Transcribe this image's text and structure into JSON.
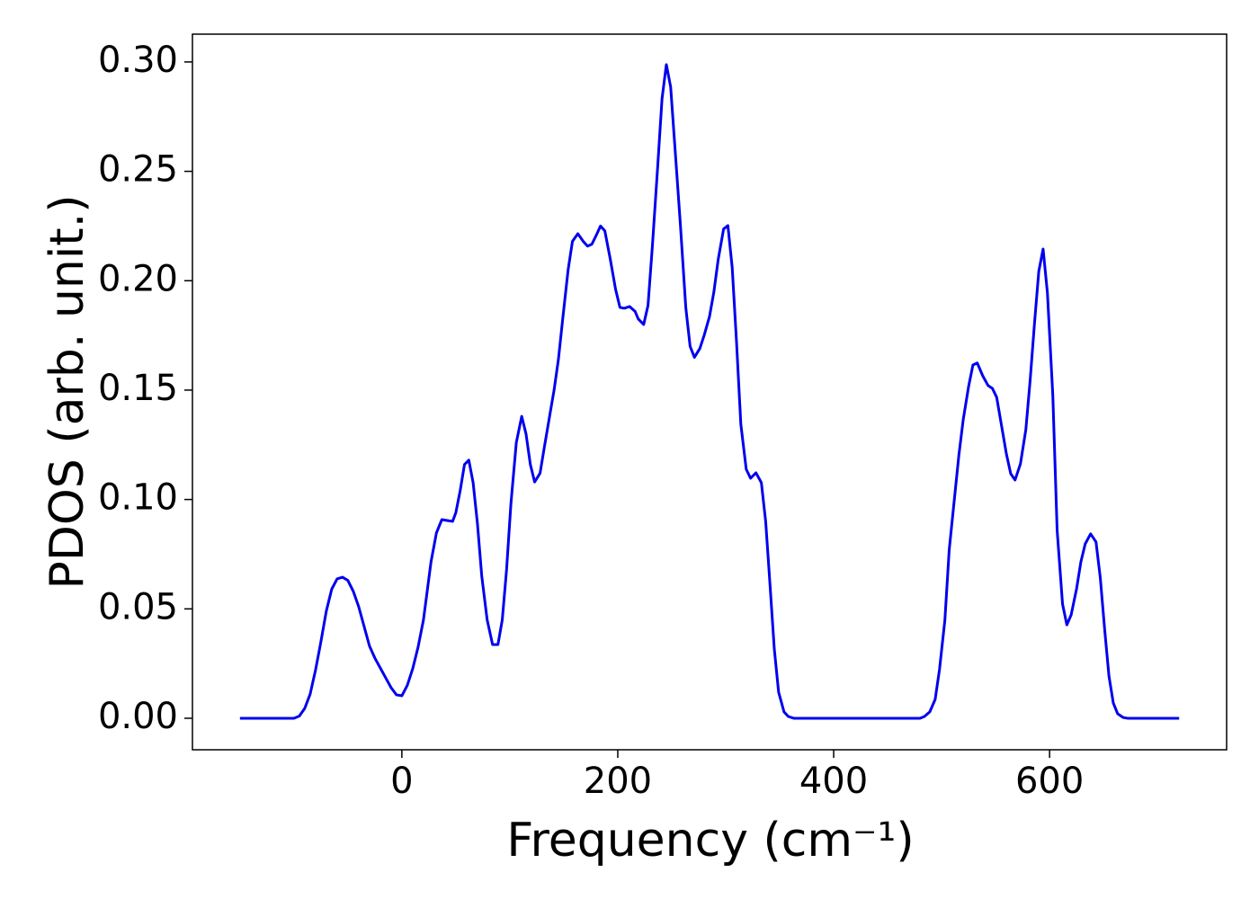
{
  "chart_data": {
    "type": "line",
    "xlabel": "Frequency (cm⁻¹)",
    "ylabel": "PDOS (arb. unit.)",
    "xlim": [
      -194,
      764
    ],
    "ylim": [
      -0.0144,
      0.3127
    ],
    "xticks": [
      0,
      200,
      400,
      600
    ],
    "yticks": [
      {
        "value": 0,
        "label": "0.00"
      },
      {
        "value": 0.05,
        "label": "0.05"
      },
      {
        "value": 0.1,
        "label": "0.10"
      },
      {
        "value": 0.15,
        "label": "0.15"
      },
      {
        "value": 0.2,
        "label": "0.20"
      },
      {
        "value": 0.25,
        "label": "0.25"
      },
      {
        "value": 0.3,
        "label": "0.30"
      }
    ],
    "series": [
      {
        "color": "#0000ee",
        "x": [
          -150,
          -100,
          -95,
          -90,
          -85,
          -80,
          -75,
          -70,
          -65,
          -60,
          -55,
          -50,
          -45,
          -40,
          -35,
          -30,
          -25,
          -20,
          -15,
          -10,
          -5,
          0,
          5,
          10,
          15,
          20,
          27,
          32,
          37,
          42,
          47,
          50,
          54,
          58,
          62,
          66,
          70,
          74,
          79,
          84,
          89,
          93,
          97,
          101,
          106,
          111,
          115,
          119,
          123,
          128,
          132,
          137,
          141,
          145,
          149,
          154,
          158,
          163,
          168,
          172,
          176,
          180,
          184,
          188,
          193,
          198,
          202,
          206,
          211,
          216,
          219,
          224,
          228,
          232,
          237,
          241,
          245,
          249,
          253,
          258,
          263,
          267,
          271,
          276,
          280,
          285,
          289,
          293,
          298,
          302,
          306,
          310,
          314,
          319,
          323,
          328,
          333,
          337,
          341,
          345,
          349,
          354,
          358,
          363,
          480,
          484,
          489,
          494,
          498,
          503,
          507,
          512,
          516,
          520,
          525,
          529,
          533,
          538,
          543,
          547,
          551,
          555,
          560,
          564,
          568,
          573,
          578,
          582,
          586,
          590,
          594,
          598,
          603,
          607,
          612,
          616,
          620,
          625,
          629,
          633,
          638,
          643,
          647,
          651,
          655,
          659,
          663,
          668,
          672,
          720
        ],
        "values": [
          0,
          0,
          0.001,
          0.0045,
          0.011,
          0.022,
          0.035,
          0.049,
          0.059,
          0.0637,
          0.0645,
          0.063,
          0.058,
          0.051,
          0.042,
          0.033,
          0.0275,
          0.023,
          0.0185,
          0.014,
          0.0107,
          0.0103,
          0.015,
          0.0226,
          0.0325,
          0.045,
          0.0715,
          0.0847,
          0.0908,
          0.0904,
          0.09,
          0.094,
          0.104,
          0.116,
          0.118,
          0.1077,
          0.089,
          0.065,
          0.045,
          0.0337,
          0.0337,
          0.045,
          0.068,
          0.098,
          0.126,
          0.138,
          0.13,
          0.116,
          0.108,
          0.112,
          0.124,
          0.1385,
          0.15,
          0.164,
          0.1825,
          0.205,
          0.218,
          0.2215,
          0.218,
          0.2158,
          0.2167,
          0.2207,
          0.225,
          0.2228,
          0.21,
          0.196,
          0.1878,
          0.1874,
          0.1882,
          0.186,
          0.1825,
          0.18,
          0.1887,
          0.2154,
          0.2524,
          0.2832,
          0.2988,
          0.2885,
          0.2606,
          0.2256,
          0.1878,
          0.17,
          0.165,
          0.169,
          0.175,
          0.1837,
          0.1948,
          0.2096,
          0.2236,
          0.2252,
          0.206,
          0.172,
          0.1344,
          0.1138,
          0.1097,
          0.1122,
          0.1077,
          0.09,
          0.0612,
          0.0316,
          0.0119,
          0.0029,
          0.0008,
          0,
          0,
          0.0008,
          0.0029,
          0.0086,
          0.0222,
          0.0448,
          0.0769,
          0.1011,
          0.1204,
          0.1365,
          0.1517,
          0.1615,
          0.1624,
          0.1566,
          0.1521,
          0.1508,
          0.1467,
          0.1352,
          0.1208,
          0.1118,
          0.1089,
          0.1163,
          0.1319,
          0.1545,
          0.1804,
          0.2043,
          0.2145,
          0.1944,
          0.1476,
          0.0859,
          0.0522,
          0.0427,
          0.0473,
          0.0592,
          0.0715,
          0.0797,
          0.0843,
          0.0806,
          0.0641,
          0.0407,
          0.0193,
          0.007,
          0.0021,
          0.0004,
          0,
          0
        ]
      }
    ]
  }
}
